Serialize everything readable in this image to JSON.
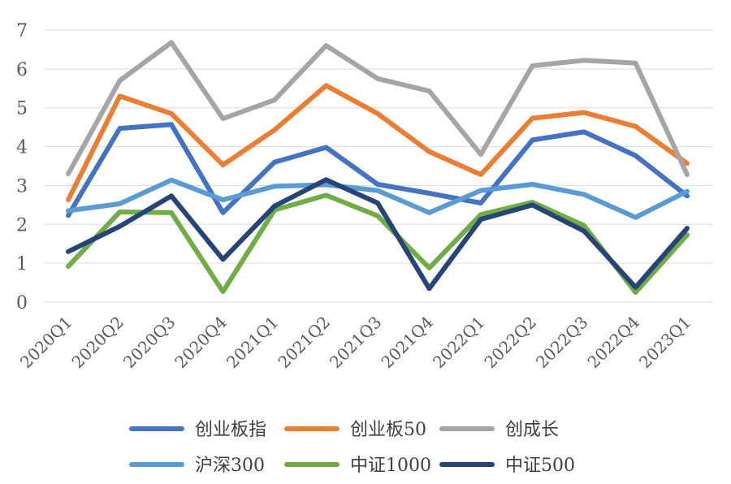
{
  "chart_data": {
    "type": "line",
    "title": "",
    "xlabel": "",
    "ylabel": "",
    "ylim": [
      0,
      7
    ],
    "yticks": [
      0,
      1,
      2,
      3,
      4,
      5,
      6,
      7
    ],
    "grid": "horizontal",
    "legend_position": "bottom",
    "categories": [
      "2020Q1",
      "2020Q2",
      "2020Q3",
      "2020Q4",
      "2021Q1",
      "2021Q2",
      "2021Q3",
      "2021Q4",
      "2022Q1",
      "2022Q2",
      "2022Q3",
      "2022Q4",
      "2023Q1"
    ],
    "series": [
      {
        "name": "创业板指",
        "color": "#4472C4",
        "values": [
          2.23,
          4.47,
          4.57,
          2.3,
          3.6,
          3.98,
          3.03,
          2.8,
          2.55,
          4.17,
          4.38,
          3.77,
          2.73
        ]
      },
      {
        "name": "创业板50",
        "color": "#ED7D31",
        "values": [
          2.63,
          5.3,
          4.85,
          3.53,
          4.43,
          5.57,
          4.85,
          3.87,
          3.28,
          4.73,
          4.88,
          4.52,
          3.57
        ]
      },
      {
        "name": "创成长",
        "color": "#A5A5A5",
        "values": [
          3.3,
          5.7,
          6.68,
          4.72,
          5.2,
          6.6,
          5.75,
          5.43,
          3.8,
          6.08,
          6.22,
          6.15,
          3.28
        ]
      },
      {
        "name": "沪深300",
        "color": "#5B9BD5",
        "values": [
          2.35,
          2.53,
          3.14,
          2.63,
          2.98,
          3.02,
          2.87,
          2.3,
          2.87,
          3.03,
          2.77,
          2.18,
          2.85
        ]
      },
      {
        "name": "中证1000",
        "color": "#70AD47",
        "values": [
          0.92,
          2.32,
          2.3,
          0.27,
          2.37,
          2.75,
          2.22,
          0.88,
          2.25,
          2.57,
          1.97,
          0.25,
          1.73
        ]
      },
      {
        "name": "中证500",
        "color": "#264478",
        "values": [
          1.3,
          1.95,
          2.73,
          1.1,
          2.47,
          3.15,
          2.55,
          0.35,
          2.13,
          2.5,
          1.83,
          0.38,
          1.9
        ]
      }
    ]
  }
}
